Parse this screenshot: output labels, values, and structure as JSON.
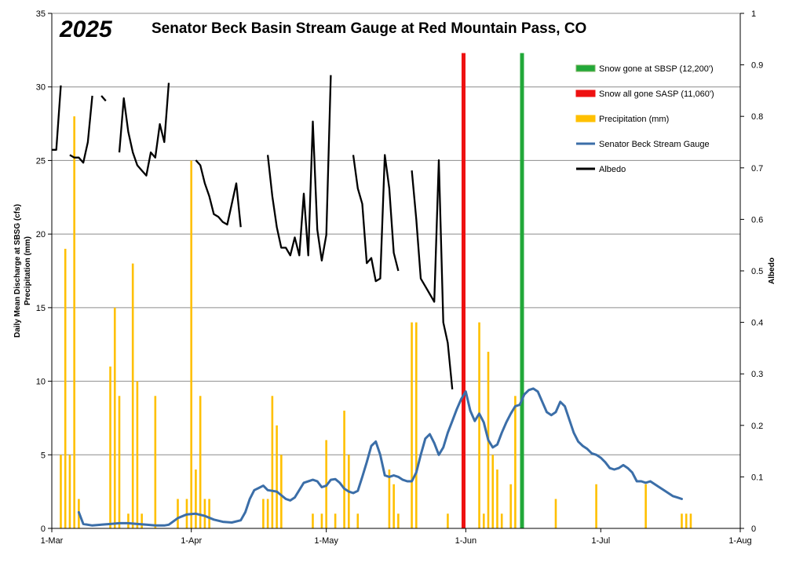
{
  "chart_data": {
    "type": "combo",
    "year_label": "2025",
    "title": "Senator Beck Basin Stream Gauge at Red Mountain Pass, CO",
    "y_left_label_line1": "Daily Mean Discharge at SBSG (cfs)",
    "y_left_label_line2": "Precipitation (mm)",
    "y_right_label": "Albedo",
    "y_left_range": [
      0,
      35
    ],
    "y_left_ticks": [
      0,
      5,
      10,
      15,
      20,
      25,
      30,
      35
    ],
    "y_right_range": [
      0,
      1
    ],
    "y_right_ticks": [
      "0",
      "0.1",
      "0.2",
      "0.3",
      "0.4",
      "0.5",
      "0.6",
      "0.7",
      "0.8",
      "0.9",
      "1"
    ],
    "x_day_range": [
      0,
      153
    ],
    "x_ticks": [
      {
        "label": "1-Mar",
        "day": 0
      },
      {
        "label": "1-Apr",
        "day": 31
      },
      {
        "label": "1-May",
        "day": 61
      },
      {
        "label": "1-Jun",
        "day": 92
      },
      {
        "label": "1-Jul",
        "day": 122
      },
      {
        "label": "1-Aug",
        "day": 153
      }
    ],
    "grid": "horizontal",
    "legend_position": "top-right",
    "legend": [
      {
        "label": "Snow gone at SBSP (12,200')",
        "kind": "box",
        "color": "#22a839",
        "border": "#7bb661"
      },
      {
        "label": "Snow all gone SASP (11,060')",
        "kind": "box",
        "color": "#ee1111",
        "border": "#ee1111"
      },
      {
        "label": "Precipitation (mm)",
        "kind": "box",
        "color": "#ffc000",
        "border": "#ffc000"
      },
      {
        "label": "Senator Beck Stream Gauge",
        "kind": "line",
        "color": "#3b6ea8"
      },
      {
        "label": "Albedo",
        "kind": "line",
        "color": "#000000"
      }
    ],
    "markers": [
      {
        "name": "Snow all gone SASP (11,060')",
        "day": 91.5,
        "color": "#ee1111",
        "top": 32.3
      },
      {
        "name": "Snow gone at SBSP (12,200')",
        "day": 104.5,
        "color": "#22a839",
        "top": 32.3
      }
    ],
    "precipitation": [
      {
        "day": 2,
        "value": 5
      },
      {
        "day": 3,
        "value": 19
      },
      {
        "day": 4,
        "value": 5
      },
      {
        "day": 5,
        "value": 28
      },
      {
        "day": 6,
        "value": 2
      },
      {
        "day": 13,
        "value": 11
      },
      {
        "day": 14,
        "value": 15
      },
      {
        "day": 15,
        "value": 9
      },
      {
        "day": 17,
        "value": 1
      },
      {
        "day": 18,
        "value": 18
      },
      {
        "day": 19,
        "value": 10
      },
      {
        "day": 20,
        "value": 1
      },
      {
        "day": 23,
        "value": 9
      },
      {
        "day": 28,
        "value": 2
      },
      {
        "day": 30,
        "value": 2
      },
      {
        "day": 31,
        "value": 25
      },
      {
        "day": 32,
        "value": 4
      },
      {
        "day": 33,
        "value": 9
      },
      {
        "day": 34,
        "value": 2
      },
      {
        "day": 35,
        "value": 2
      },
      {
        "day": 47,
        "value": 2
      },
      {
        "day": 48,
        "value": 2
      },
      {
        "day": 49,
        "value": 9
      },
      {
        "day": 50,
        "value": 7
      },
      {
        "day": 51,
        "value": 5
      },
      {
        "day": 58,
        "value": 1
      },
      {
        "day": 60,
        "value": 1
      },
      {
        "day": 61,
        "value": 6
      },
      {
        "day": 63,
        "value": 1
      },
      {
        "day": 65,
        "value": 8
      },
      {
        "day": 66,
        "value": 5
      },
      {
        "day": 68,
        "value": 1
      },
      {
        "day": 75,
        "value": 4
      },
      {
        "day": 76,
        "value": 3
      },
      {
        "day": 77,
        "value": 1
      },
      {
        "day": 80,
        "value": 14
      },
      {
        "day": 81,
        "value": 14
      },
      {
        "day": 88,
        "value": 1
      },
      {
        "day": 95,
        "value": 14
      },
      {
        "day": 96,
        "value": 1
      },
      {
        "day": 97,
        "value": 12
      },
      {
        "day": 98,
        "value": 5
      },
      {
        "day": 99,
        "value": 4
      },
      {
        "day": 100,
        "value": 1
      },
      {
        "day": 102,
        "value": 3
      },
      {
        "day": 103,
        "value": 9
      },
      {
        "day": 112,
        "value": 2
      },
      {
        "day": 121,
        "value": 3
      },
      {
        "day": 132,
        "value": 3
      },
      {
        "day": 140,
        "value": 1
      },
      {
        "day": 141,
        "value": 1
      },
      {
        "day": 142,
        "value": 1
      }
    ],
    "stream_gauge": [
      [
        6,
        1.1
      ],
      [
        7,
        0.3
      ],
      [
        9,
        0.2
      ],
      [
        11,
        0.25
      ],
      [
        13,
        0.3
      ],
      [
        15,
        0.35
      ],
      [
        17,
        0.35
      ],
      [
        19,
        0.3
      ],
      [
        21,
        0.25
      ],
      [
        23,
        0.2
      ],
      [
        25,
        0.2
      ],
      [
        26,
        0.25
      ],
      [
        28,
        0.7
      ],
      [
        30,
        0.95
      ],
      [
        32,
        1.0
      ],
      [
        34,
        0.85
      ],
      [
        36,
        0.6
      ],
      [
        38,
        0.45
      ],
      [
        40,
        0.4
      ],
      [
        42,
        0.55
      ],
      [
        43,
        1.1
      ],
      [
        44,
        2.0
      ],
      [
        45,
        2.6
      ],
      [
        46,
        2.75
      ],
      [
        47,
        2.9
      ],
      [
        48,
        2.6
      ],
      [
        49,
        2.55
      ],
      [
        50,
        2.5
      ],
      [
        52,
        2.0
      ],
      [
        53,
        1.9
      ],
      [
        54,
        2.1
      ],
      [
        56,
        3.1
      ],
      [
        58,
        3.3
      ],
      [
        59,
        3.2
      ],
      [
        60,
        2.8
      ],
      [
        61,
        2.9
      ],
      [
        62,
        3.3
      ],
      [
        63,
        3.35
      ],
      [
        64,
        3.1
      ],
      [
        65,
        2.7
      ],
      [
        66,
        2.5
      ],
      [
        67,
        2.4
      ],
      [
        68,
        2.55
      ],
      [
        69,
        3.5
      ],
      [
        70,
        4.5
      ],
      [
        71,
        5.6
      ],
      [
        72,
        5.9
      ],
      [
        73,
        5.0
      ],
      [
        74,
        3.6
      ],
      [
        75,
        3.5
      ],
      [
        76,
        3.6
      ],
      [
        77,
        3.5
      ],
      [
        78,
        3.3
      ],
      [
        79,
        3.2
      ],
      [
        80,
        3.2
      ],
      [
        81,
        3.8
      ],
      [
        82,
        5.0
      ],
      [
        83,
        6.1
      ],
      [
        84,
        6.4
      ],
      [
        85,
        5.8
      ],
      [
        86,
        5.0
      ],
      [
        87,
        5.5
      ],
      [
        88,
        6.5
      ],
      [
        89,
        7.3
      ],
      [
        90,
        8.1
      ],
      [
        91,
        8.8
      ],
      [
        92,
        9.3
      ],
      [
        93,
        8.0
      ],
      [
        94,
        7.3
      ],
      [
        95,
        7.8
      ],
      [
        96,
        7.2
      ],
      [
        97,
        6.0
      ],
      [
        98,
        5.5
      ],
      [
        99,
        5.7
      ],
      [
        100,
        6.5
      ],
      [
        101,
        7.2
      ],
      [
        102,
        7.8
      ],
      [
        103,
        8.3
      ],
      [
        104,
        8.4
      ],
      [
        105,
        9.1
      ],
      [
        106,
        9.4
      ],
      [
        107,
        9.5
      ],
      [
        108,
        9.3
      ],
      [
        109,
        8.6
      ],
      [
        110,
        7.9
      ],
      [
        111,
        7.7
      ],
      [
        112,
        7.9
      ],
      [
        113,
        8.6
      ],
      [
        114,
        8.3
      ],
      [
        115,
        7.4
      ],
      [
        116,
        6.5
      ],
      [
        117,
        5.9
      ],
      [
        118,
        5.6
      ],
      [
        119,
        5.4
      ],
      [
        120,
        5.1
      ],
      [
        121,
        5.0
      ],
      [
        122,
        4.8
      ],
      [
        123,
        4.5
      ],
      [
        124,
        4.1
      ],
      [
        125,
        4.0
      ],
      [
        126,
        4.1
      ],
      [
        127,
        4.3
      ],
      [
        128,
        4.1
      ],
      [
        129,
        3.8
      ],
      [
        130,
        3.2
      ],
      [
        131,
        3.2
      ],
      [
        132,
        3.1
      ],
      [
        133,
        3.2
      ],
      [
        134,
        3.0
      ],
      [
        135,
        2.8
      ],
      [
        136,
        2.6
      ],
      [
        137,
        2.4
      ],
      [
        138,
        2.2
      ],
      [
        139,
        2.1
      ],
      [
        140,
        2.0
      ]
    ],
    "albedo_segments": [
      [
        [
          0,
          0.735
        ],
        [
          1,
          0.735
        ],
        [
          2,
          0.86
        ]
      ],
      [
        [
          4,
          0.725
        ],
        [
          5,
          0.72
        ],
        [
          6,
          0.72
        ],
        [
          7,
          0.71
        ],
        [
          8,
          0.75
        ],
        [
          9,
          0.84
        ]
      ],
      [
        [
          11,
          0.84
        ],
        [
          12,
          0.83
        ]
      ],
      [
        [
          15,
          0.73
        ],
        [
          16,
          0.835
        ],
        [
          17,
          0.77
        ],
        [
          18,
          0.73
        ],
        [
          19,
          0.705
        ],
        [
          20,
          0.695
        ],
        [
          21,
          0.685
        ],
        [
          22,
          0.73
        ],
        [
          23,
          0.72
        ],
        [
          24,
          0.785
        ],
        [
          25,
          0.75
        ],
        [
          26,
          0.865
        ]
      ],
      [
        [
          32,
          0.715
        ],
        [
          33,
          0.705
        ],
        [
          34,
          0.67
        ],
        [
          35,
          0.645
        ],
        [
          36,
          0.61
        ],
        [
          37,
          0.605
        ],
        [
          38,
          0.595
        ],
        [
          39,
          0.59
        ],
        [
          41,
          0.67
        ],
        [
          42,
          0.585
        ]
      ],
      [
        [
          48,
          0.725
        ],
        [
          49,
          0.645
        ],
        [
          50,
          0.585
        ],
        [
          51,
          0.545
        ],
        [
          52,
          0.545
        ],
        [
          53,
          0.53
        ],
        [
          54,
          0.565
        ],
        [
          55,
          0.53
        ],
        [
          56,
          0.65
        ],
        [
          57,
          0.53
        ],
        [
          58,
          0.79
        ],
        [
          59,
          0.58
        ],
        [
          60,
          0.52
        ],
        [
          61,
          0.57
        ],
        [
          62,
          0.88
        ]
      ],
      [
        [
          67,
          0.725
        ],
        [
          68,
          0.66
        ],
        [
          69,
          0.63
        ],
        [
          70,
          0.515
        ],
        [
          71,
          0.525
        ],
        [
          72,
          0.48
        ],
        [
          73,
          0.485
        ],
        [
          74,
          0.725
        ],
        [
          75,
          0.66
        ],
        [
          76,
          0.535
        ],
        [
          77,
          0.5
        ]
      ],
      [
        [
          80,
          0.695
        ],
        [
          81,
          0.6
        ],
        [
          82,
          0.485
        ],
        [
          83,
          0.47
        ],
        [
          84,
          0.455
        ],
        [
          85,
          0.44
        ],
        [
          86,
          0.715
        ],
        [
          87,
          0.4
        ],
        [
          88,
          0.36
        ],
        [
          89,
          0.27
        ]
      ]
    ]
  }
}
